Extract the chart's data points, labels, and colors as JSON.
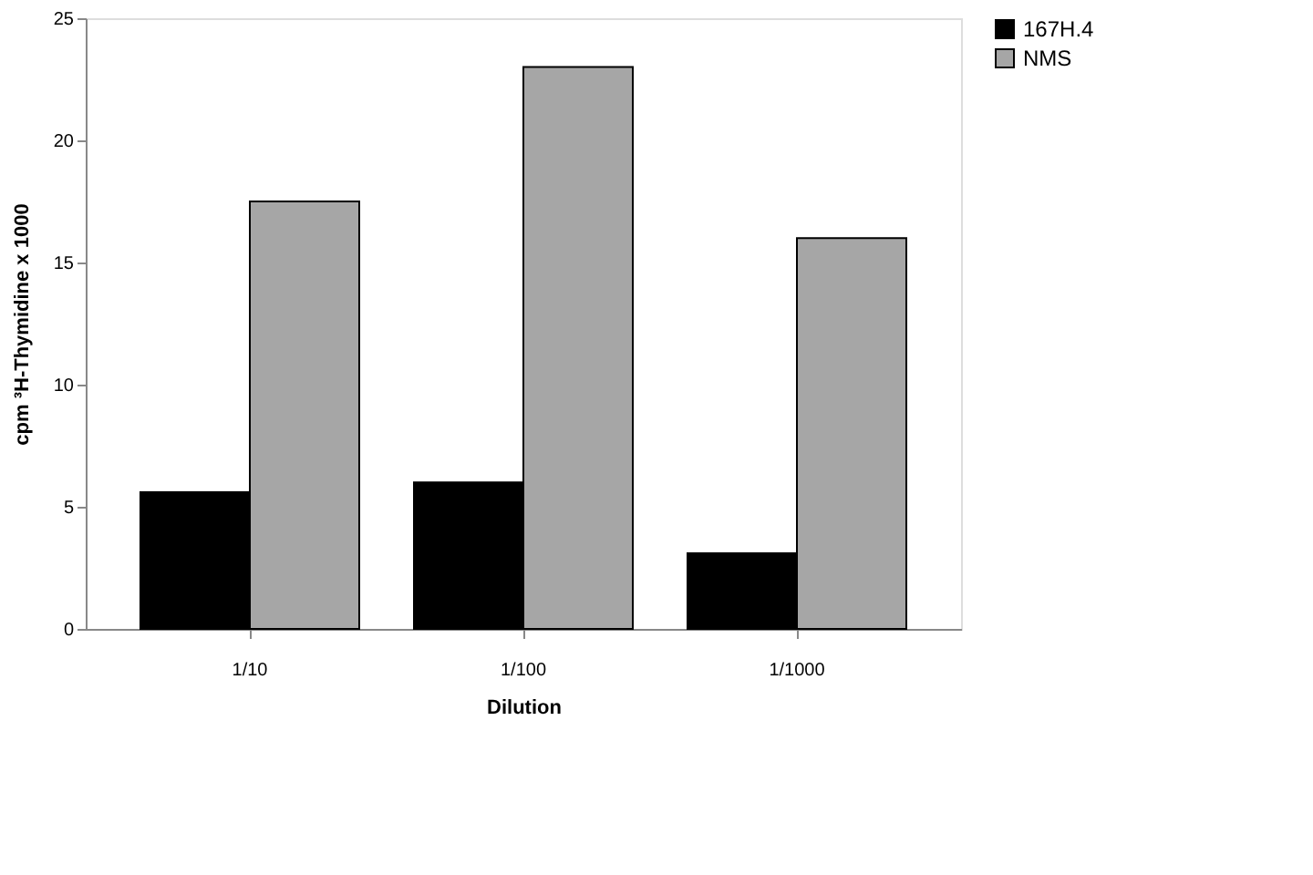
{
  "chart_data": {
    "type": "bar",
    "xlabel": "Dilution",
    "ylabel": "cpm ³H-Thymidine x 1000",
    "categories": [
      "1/10",
      "1/100",
      "1/1000"
    ],
    "series": [
      {
        "name": "167H.4",
        "color": "#000000",
        "values": [
          5.6,
          6.0,
          3.1
        ]
      },
      {
        "name": "NMS",
        "color": "#a6a6a6",
        "values": [
          17.5,
          23.0,
          16.0
        ]
      }
    ],
    "ylim": [
      0,
      25
    ],
    "yticks": [
      0,
      5,
      10,
      15,
      20,
      25
    ],
    "grid": false,
    "legend": "right"
  }
}
